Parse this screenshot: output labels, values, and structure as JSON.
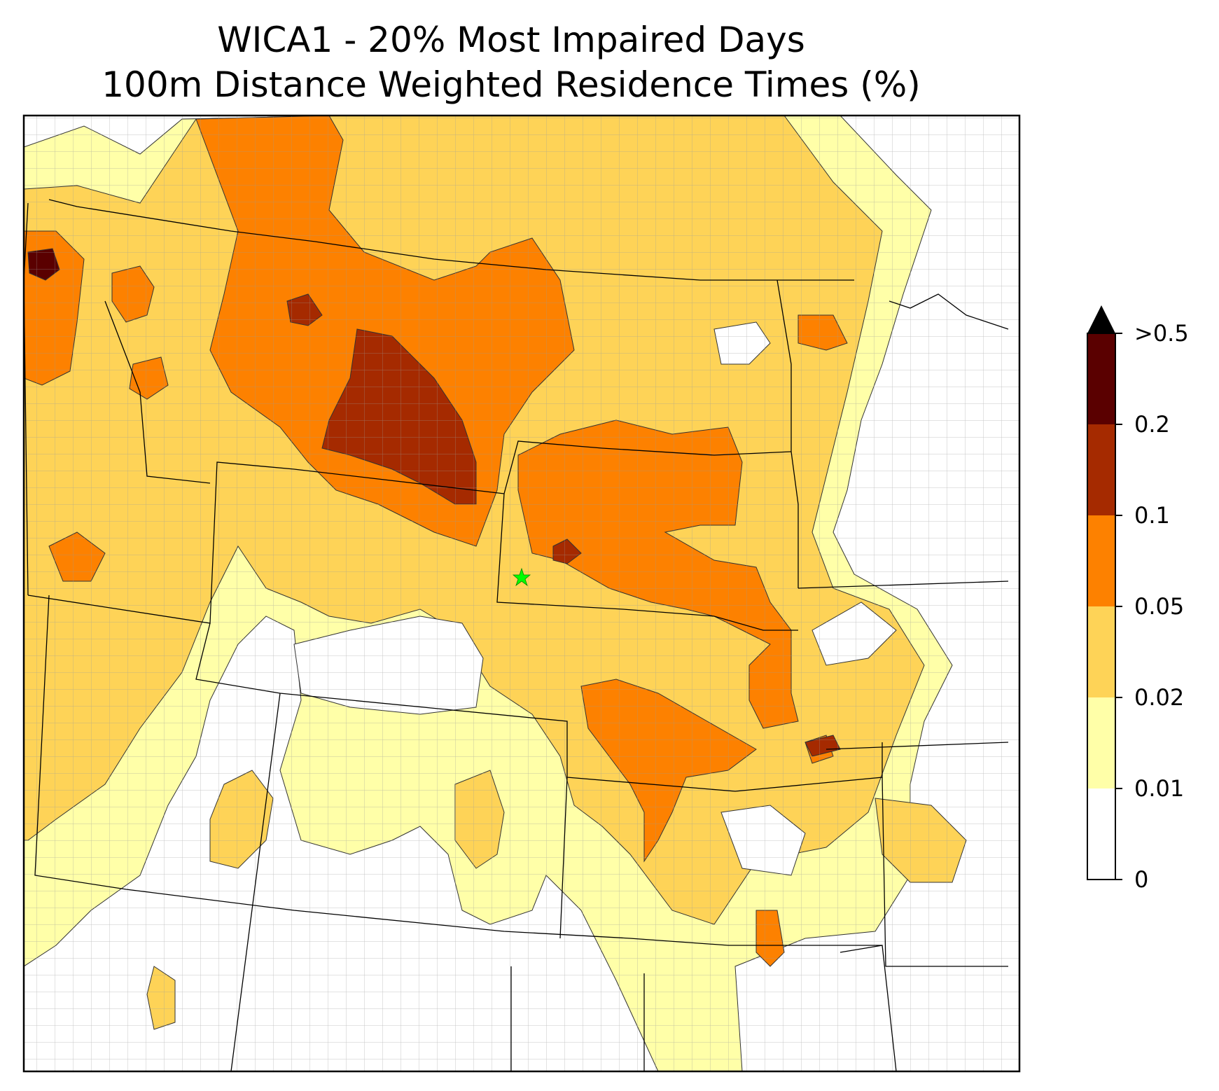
{
  "title": {
    "line1": "WICA1 - 20% Most Impaired Days",
    "line2": "100m Distance Weighted Residence Times (%)"
  },
  "colorbar": {
    "ticks": [
      "0",
      "0.01",
      "0.02",
      "0.05",
      "0.1",
      "0.2",
      ">0.5"
    ],
    "bins": [
      {
        "color": "#ffffff"
      },
      {
        "color": "#ffffa8"
      },
      {
        "color": "#fed357"
      },
      {
        "color": "#fd8100"
      },
      {
        "color": "#a52a00"
      },
      {
        "color": "#5a0000"
      }
    ],
    "extend_color": "#000000"
  },
  "colors": {
    "white": "#ffffff",
    "light_yellow": "#ffffa8",
    "gold": "#fed357",
    "orange": "#fd8100",
    "rust": "#a52a00",
    "dark_maroon": "#5a0000",
    "site_marker": "#00ff00",
    "state_lines": "#000000",
    "county_lines": "#9a9a9a"
  },
  "marker": {
    "name": "star-icon"
  }
}
